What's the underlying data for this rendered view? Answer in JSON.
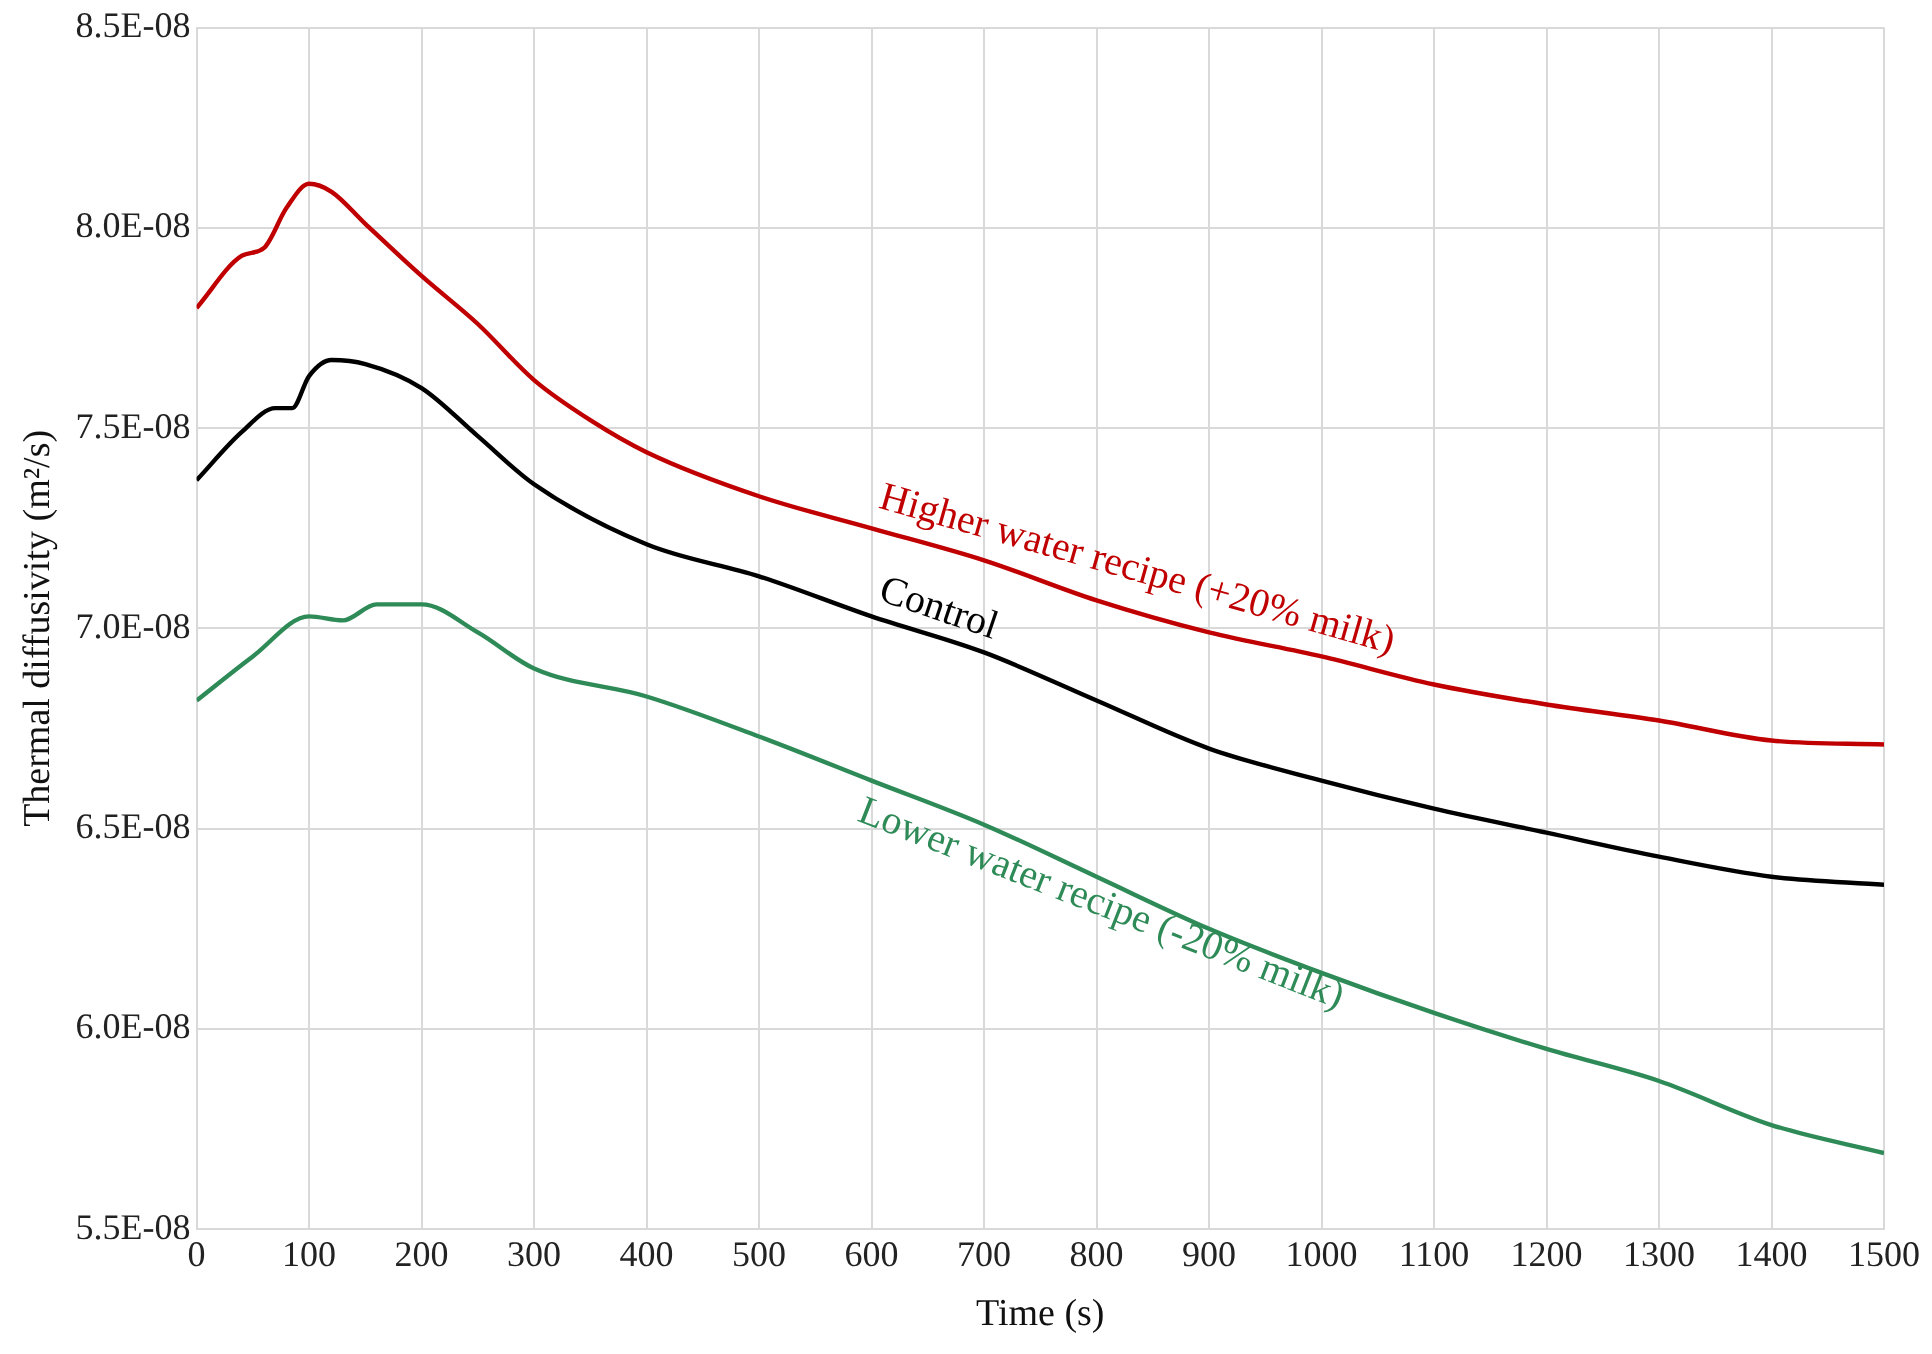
{
  "chart_data": {
    "type": "line",
    "xlabel": "Time (s)",
    "ylabel": "Thermal diffusivity (m²/s)",
    "xlim": [
      0,
      1500
    ],
    "xticks": [
      0,
      100,
      200,
      300,
      400,
      500,
      600,
      700,
      800,
      900,
      1000,
      1100,
      1200,
      1300,
      1400,
      1500
    ],
    "ylim": [
      5.5e-08,
      8.5e-08
    ],
    "yticks": [
      {
        "value": 5.5e-08,
        "label": "5.5E-08"
      },
      {
        "value": 6e-08,
        "label": "6.0E-08"
      },
      {
        "value": 6.5e-08,
        "label": "6.5E-08"
      },
      {
        "value": 7e-08,
        "label": "7.0E-08"
      },
      {
        "value": 7.5e-08,
        "label": "7.5E-08"
      },
      {
        "value": 8e-08,
        "label": "8.0E-08"
      },
      {
        "value": 8.5e-08,
        "label": "8.5E-08"
      }
    ],
    "grid": true,
    "marker": "none",
    "line_style": "solid",
    "series": [
      {
        "name": "Higher water recipe (+20% milk)",
        "color": "#c00000",
        "x": [
          0,
          40,
          60,
          80,
          100,
          120,
          150,
          200,
          250,
          300,
          350,
          400,
          500,
          600,
          700,
          800,
          900,
          1000,
          1100,
          1200,
          1300,
          1400,
          1500
        ],
        "values": [
          7.8e-08,
          7.93e-08,
          7.95e-08,
          8.05e-08,
          8.11e-08,
          8.09e-08,
          8.01e-08,
          7.88e-08,
          7.76e-08,
          7.62e-08,
          7.52e-08,
          7.44e-08,
          7.33e-08,
          7.25e-08,
          7.17e-08,
          7.07e-08,
          6.99e-08,
          6.93e-08,
          6.86e-08,
          6.81e-08,
          6.77e-08,
          6.72e-08,
          6.71e-08
        ]
      },
      {
        "name": "Control",
        "color": "#000000",
        "x": [
          0,
          40,
          70,
          85,
          100,
          120,
          150,
          200,
          250,
          300,
          400,
          500,
          600,
          700,
          800,
          900,
          1000,
          1100,
          1200,
          1300,
          1400,
          1500
        ],
        "values": [
          7.37e-08,
          7.49e-08,
          7.55e-08,
          7.55e-08,
          7.63e-08,
          7.67e-08,
          7.66e-08,
          7.6e-08,
          7.48e-08,
          7.36e-08,
          7.21e-08,
          7.13e-08,
          7.03e-08,
          6.94e-08,
          6.82e-08,
          6.7e-08,
          6.62e-08,
          6.55e-08,
          6.49e-08,
          6.43e-08,
          6.38e-08,
          6.36e-08
        ]
      },
      {
        "name": "Lower water recipe (-20% milk)",
        "color": "#2e8b57",
        "x": [
          0,
          50,
          100,
          130,
          160,
          200,
          250,
          300,
          400,
          500,
          600,
          700,
          800,
          900,
          1000,
          1100,
          1200,
          1300,
          1400,
          1500
        ],
        "values": [
          6.82e-08,
          6.93e-08,
          7.03e-08,
          7.02e-08,
          7.06e-08,
          7.06e-08,
          6.99e-08,
          6.9e-08,
          6.83e-08,
          6.73e-08,
          6.62e-08,
          6.51e-08,
          6.38e-08,
          6.25e-08,
          6.14e-08,
          6.04e-08,
          5.95e-08,
          5.87e-08,
          5.76e-08,
          5.69e-08
        ]
      }
    ]
  }
}
